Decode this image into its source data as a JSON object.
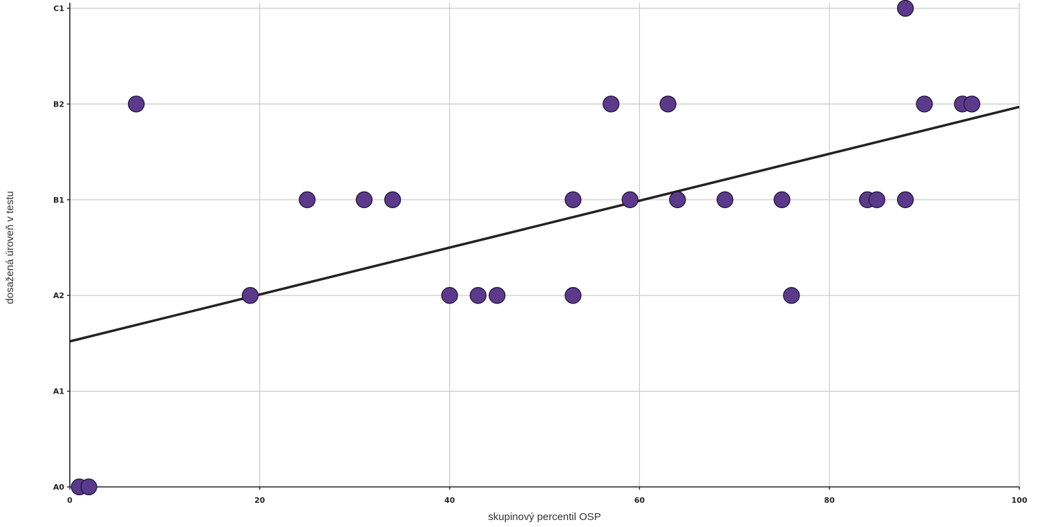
{
  "chart_data": {
    "type": "scatter",
    "title": "",
    "xlabel": "skupinový percentil OSP",
    "ylabel": "dosažená úroveň v testu",
    "xlim": [
      0,
      100
    ],
    "ylim": [
      0,
      5
    ],
    "x_ticks": [
      0,
      20,
      40,
      60,
      80,
      100
    ],
    "y_ticks": [
      0,
      1,
      2,
      3,
      4,
      5
    ],
    "y_tick_labels": [
      "A0",
      "A1",
      "A2",
      "B1",
      "B2",
      "C1"
    ],
    "grid": true,
    "legend": "none",
    "point_color": "#5b3a8c",
    "point_edge_color": "#1e1433",
    "line_color": "#222222",
    "points": [
      {
        "x": 1,
        "y": 0
      },
      {
        "x": 2,
        "y": 0
      },
      {
        "x": 7,
        "y": 4
      },
      {
        "x": 19,
        "y": 2
      },
      {
        "x": 25,
        "y": 3
      },
      {
        "x": 31,
        "y": 3
      },
      {
        "x": 34,
        "y": 3
      },
      {
        "x": 40,
        "y": 2
      },
      {
        "x": 43,
        "y": 2
      },
      {
        "x": 45,
        "y": 2
      },
      {
        "x": 53,
        "y": 3
      },
      {
        "x": 53,
        "y": 2
      },
      {
        "x": 57,
        "y": 4
      },
      {
        "x": 59,
        "y": 3
      },
      {
        "x": 63,
        "y": 4
      },
      {
        "x": 64,
        "y": 3
      },
      {
        "x": 69,
        "y": 3
      },
      {
        "x": 75,
        "y": 3
      },
      {
        "x": 76,
        "y": 2
      },
      {
        "x": 84,
        "y": 3
      },
      {
        "x": 85,
        "y": 3
      },
      {
        "x": 88,
        "y": 5
      },
      {
        "x": 88,
        "y": 3
      },
      {
        "x": 90,
        "y": 4
      },
      {
        "x": 94,
        "y": 4
      },
      {
        "x": 95,
        "y": 4
      }
    ],
    "trend_line": {
      "x": [
        0,
        100
      ],
      "y": [
        1.52,
        3.97
      ]
    }
  }
}
